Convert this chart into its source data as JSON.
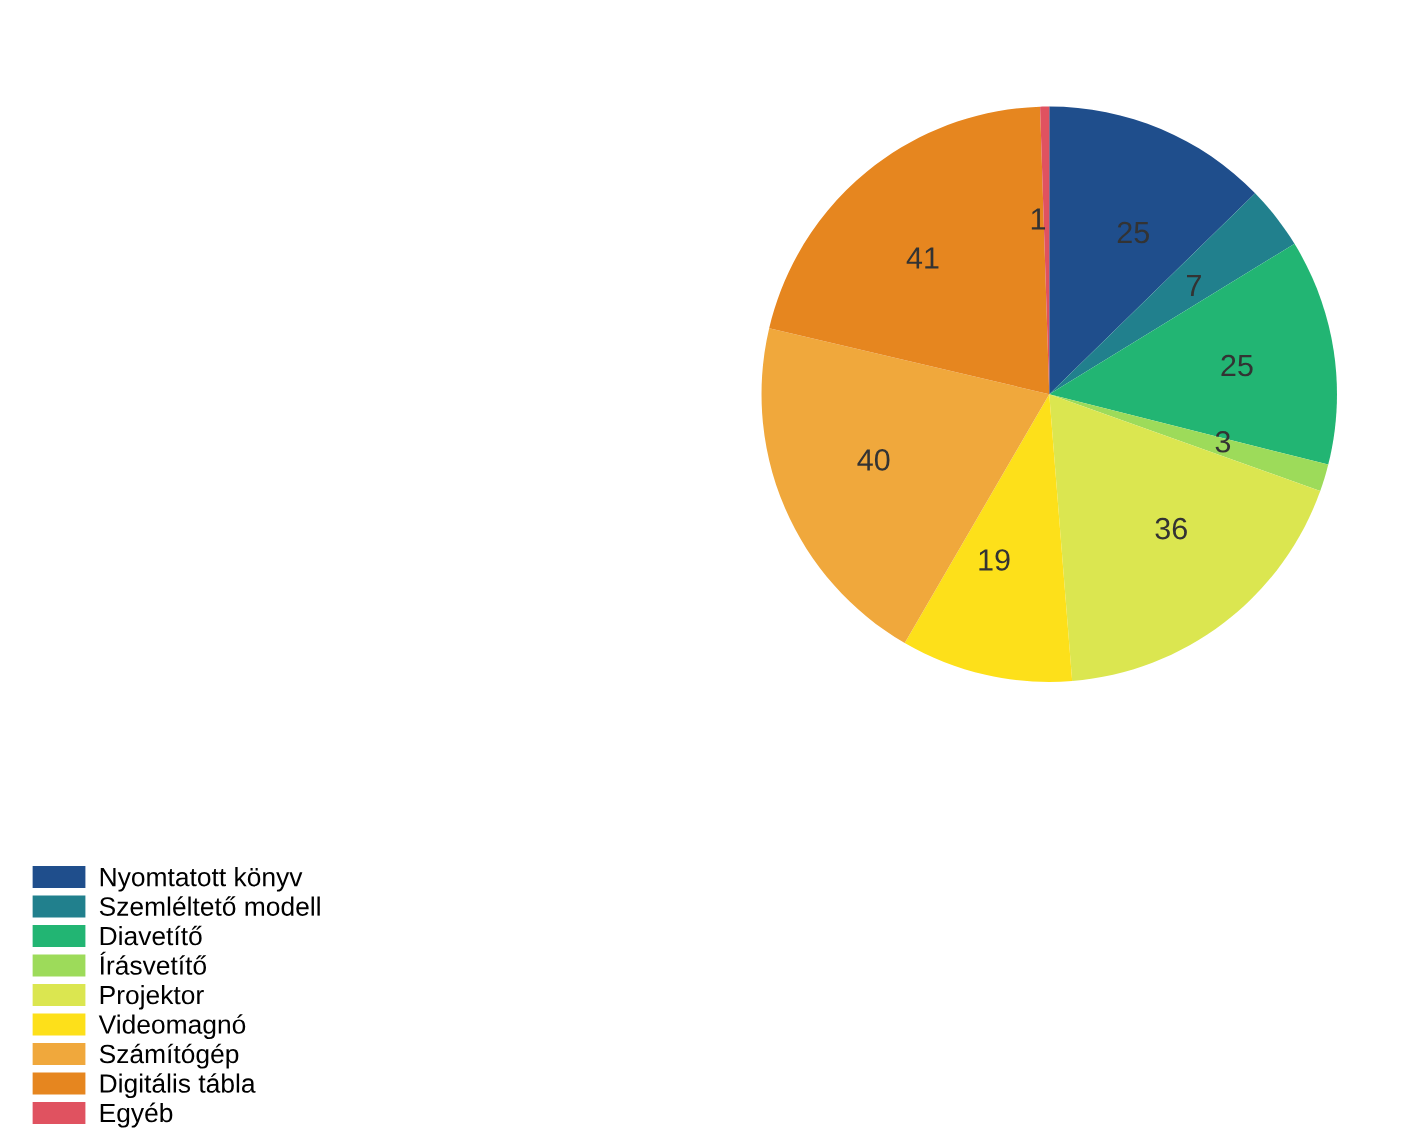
{
  "chart_data": {
    "type": "pie",
    "categories": [
      "Nyomtatott könyv",
      "Szemléltető modell",
      "Diavetítő",
      "Írásvetítő",
      "Projektor",
      "Videomagnó",
      "Számítógép",
      "Digitális tábla",
      "Egyéb"
    ],
    "values": [
      25,
      7,
      25,
      3,
      36,
      19,
      40,
      41,
      1
    ],
    "colors": [
      "#1f4e8c",
      "#21808d",
      "#22b573",
      "#9ddb5a",
      "#dbe650",
      "#fde01a",
      "#f0a83c",
      "#e6861f",
      "#e05260"
    ],
    "data_labels": true,
    "legend": "bottom left"
  }
}
